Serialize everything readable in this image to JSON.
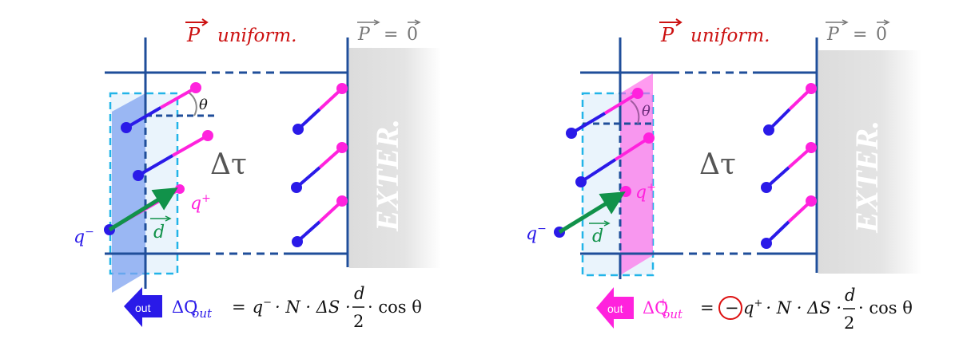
{
  "colors": {
    "frame": "#1f4e9a",
    "negative": "#2a1ae8",
    "positive": "#ff22dd",
    "dipole_vector": "#11924a",
    "title_red": "#cc1111",
    "gray_text": "#777777",
    "exterior": "#e0e0e0",
    "cyan_dash": "#22b4e8",
    "circle_mark": "#dd1111"
  },
  "panels": [
    {
      "title_polarization": "P",
      "title_uniform": "uniform.",
      "exterior_eq_left": "P",
      "exterior_eq_sign": "=",
      "exterior_eq_right": "0",
      "volume_label": "Δτ",
      "exterior_label": "EXTER.",
      "theta_label": "θ",
      "q_minus": "q",
      "q_minus_sup": "−",
      "q_plus": "q",
      "q_plus_sup": "+",
      "d_label": "d",
      "out_badge": "out",
      "formula": {
        "lhs": "ΔQ",
        "lhs_sup": "−",
        "lhs_sub": "out",
        "eq": "=",
        "minus_circled": "",
        "charge": "q",
        "charge_sup": "−",
        "rest": "· N · ΔS ·",
        "frac_num": "d",
        "frac_den": "2",
        "tail": "· cos θ"
      },
      "highlighted_charge": "negative"
    },
    {
      "title_polarization": "P",
      "title_uniform": "uniform.",
      "exterior_eq_left": "P",
      "exterior_eq_sign": "=",
      "exterior_eq_right": "0",
      "volume_label": "Δτ",
      "exterior_label": "EXTER.",
      "theta_label": "θ",
      "q_minus": "q",
      "q_minus_sup": "−",
      "q_plus": "q",
      "q_plus_sup": "+",
      "d_label": "d",
      "out_badge": "out",
      "formula": {
        "lhs": "ΔQ",
        "lhs_sup": "+",
        "lhs_sub": "out",
        "eq": "=",
        "minus_circled": "−",
        "charge": "q",
        "charge_sup": "+",
        "rest": "· N · ΔS ·",
        "frac_num": "d",
        "frac_den": "2",
        "tail": "· cos θ"
      },
      "highlighted_charge": "positive"
    }
  ]
}
